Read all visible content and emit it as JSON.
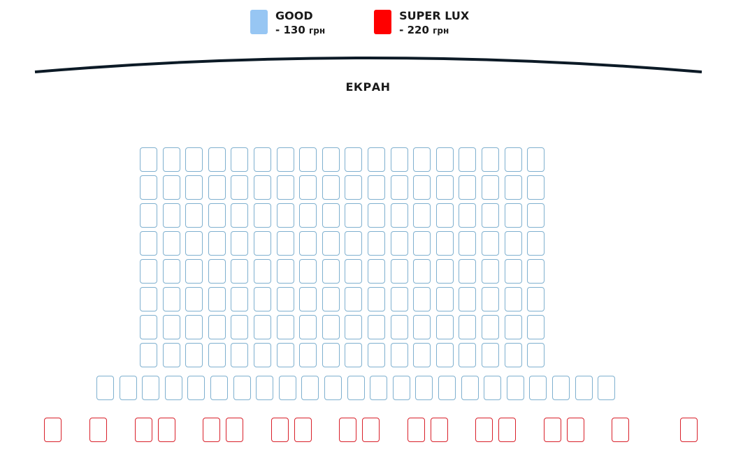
{
  "legend": [
    {
      "name": "GOOD",
      "price": "- 130",
      "currency": "грн",
      "color": "#97c6f3"
    },
    {
      "name": "SUPER LUX",
      "price": "- 220",
      "currency": "грн",
      "color": "#ff0000"
    }
  ],
  "screen": {
    "label": "ЕКРАН",
    "color": "#0c1a26"
  },
  "seat_colors": {
    "good_outline": "#7fb0cf",
    "lux_outline": "#d9202a"
  },
  "hall": {
    "good_rows": [
      18,
      18,
      18,
      18,
      18,
      18,
      18,
      18,
      23
    ],
    "lux_row_groups": [
      1,
      1,
      2,
      2,
      2,
      2,
      2,
      2,
      2,
      1
    ]
  }
}
